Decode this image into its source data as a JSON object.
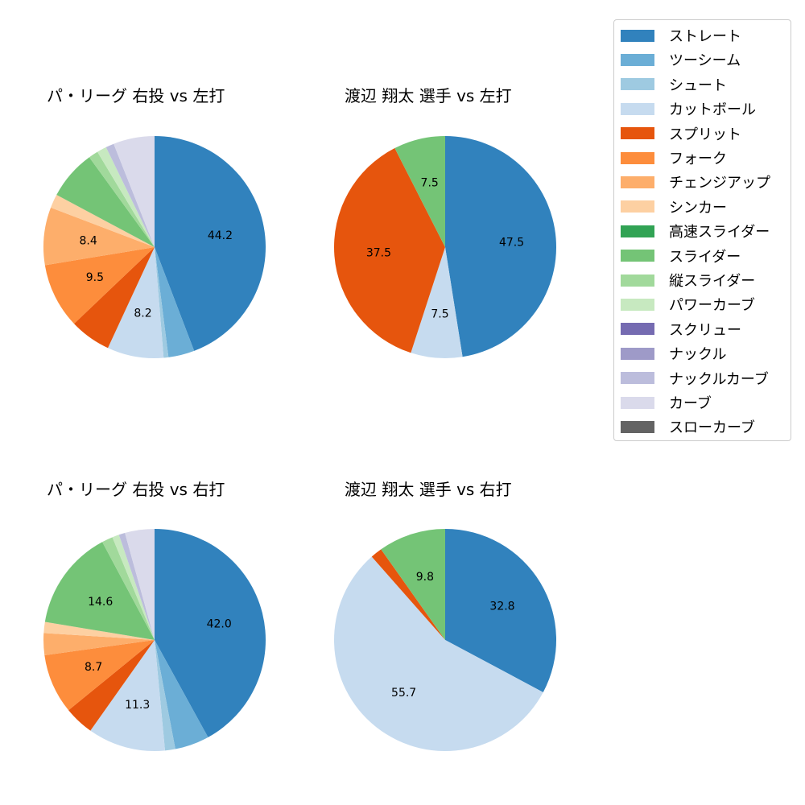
{
  "legend": {
    "items": [
      {
        "label": "ストレート",
        "color": "#3182bd"
      },
      {
        "label": "ツーシーム",
        "color": "#6baed6"
      },
      {
        "label": "シュート",
        "color": "#9ecae1"
      },
      {
        "label": "カットボール",
        "color": "#c6dbef"
      },
      {
        "label": "スプリット",
        "color": "#e6550d"
      },
      {
        "label": "フォーク",
        "color": "#fd8d3c"
      },
      {
        "label": "チェンジアップ",
        "color": "#fdae6b"
      },
      {
        "label": "シンカー",
        "color": "#fdd0a2"
      },
      {
        "label": "高速スライダー",
        "color": "#31a354"
      },
      {
        "label": "スライダー",
        "color": "#74c476"
      },
      {
        "label": "縦スライダー",
        "color": "#a1d99b"
      },
      {
        "label": "パワーカーブ",
        "color": "#c7e9c0"
      },
      {
        "label": "スクリュー",
        "color": "#756bb1"
      },
      {
        "label": "ナックル",
        "color": "#9e9ac8"
      },
      {
        "label": "ナックルカーブ",
        "color": "#bcbddc"
      },
      {
        "label": "カーブ",
        "color": "#dadaeb"
      },
      {
        "label": "スローカーブ",
        "color": "#636363"
      }
    ]
  },
  "chart_data": [
    {
      "type": "pie",
      "title": "パ・リーグ 右投 vs 左打",
      "start_angle": 90,
      "direction": "clockwise",
      "slices": [
        {
          "label": "ストレート",
          "value": 44.2,
          "shown": "44.2"
        },
        {
          "label": "ツーシーム",
          "value": 3.8,
          "shown": ""
        },
        {
          "label": "シュート",
          "value": 0.7,
          "shown": ""
        },
        {
          "label": "カットボール",
          "value": 8.2,
          "shown": "8.2"
        },
        {
          "label": "スプリット",
          "value": 6.0,
          "shown": ""
        },
        {
          "label": "フォーク",
          "value": 9.5,
          "shown": "9.5"
        },
        {
          "label": "チェンジアップ",
          "value": 8.4,
          "shown": "8.4"
        },
        {
          "label": "シンカー",
          "value": 2.0,
          "shown": ""
        },
        {
          "label": "スライダー",
          "value": 7.2,
          "shown": ""
        },
        {
          "label": "縦スライダー",
          "value": 1.4,
          "shown": ""
        },
        {
          "label": "パワーカーブ",
          "value": 1.4,
          "shown": ""
        },
        {
          "label": "ナックルカーブ",
          "value": 1.2,
          "shown": ""
        },
        {
          "label": "カーブ",
          "value": 6.0,
          "shown": ""
        }
      ]
    },
    {
      "type": "pie",
      "title": "渡辺 翔太 選手 vs 左打",
      "start_angle": 90,
      "direction": "clockwise",
      "slices": [
        {
          "label": "ストレート",
          "value": 47.5,
          "shown": "47.5"
        },
        {
          "label": "カットボール",
          "value": 7.5,
          "shown": "7.5"
        },
        {
          "label": "スプリット",
          "value": 37.5,
          "shown": "37.5"
        },
        {
          "label": "スライダー",
          "value": 7.5,
          "shown": "7.5"
        }
      ]
    },
    {
      "type": "pie",
      "title": "パ・リーグ 右投 vs 右打",
      "start_angle": 90,
      "direction": "clockwise",
      "slices": [
        {
          "label": "ストレート",
          "value": 42.0,
          "shown": "42.0"
        },
        {
          "label": "ツーシーム",
          "value": 5.0,
          "shown": ""
        },
        {
          "label": "シュート",
          "value": 1.5,
          "shown": ""
        },
        {
          "label": "カットボール",
          "value": 11.3,
          "shown": "11.3"
        },
        {
          "label": "スプリット",
          "value": 4.3,
          "shown": ""
        },
        {
          "label": "フォーク",
          "value": 8.7,
          "shown": "8.7"
        },
        {
          "label": "チェンジアップ",
          "value": 3.2,
          "shown": ""
        },
        {
          "label": "シンカー",
          "value": 1.6,
          "shown": ""
        },
        {
          "label": "スライダー",
          "value": 14.6,
          "shown": "14.6"
        },
        {
          "label": "縦スライダー",
          "value": 1.6,
          "shown": ""
        },
        {
          "label": "パワーカーブ",
          "value": 1.0,
          "shown": ""
        },
        {
          "label": "ナックルカーブ",
          "value": 0.9,
          "shown": ""
        },
        {
          "label": "カーブ",
          "value": 4.3,
          "shown": ""
        }
      ]
    },
    {
      "type": "pie",
      "title": "渡辺 翔太 選手 vs 右打",
      "start_angle": 90,
      "direction": "clockwise",
      "slices": [
        {
          "label": "ストレート",
          "value": 32.8,
          "shown": "32.8"
        },
        {
          "label": "カットボール",
          "value": 55.7,
          "shown": "55.7"
        },
        {
          "label": "スプリット",
          "value": 1.7,
          "shown": ""
        },
        {
          "label": "スライダー",
          "value": 9.8,
          "shown": "9.8"
        }
      ]
    }
  ]
}
